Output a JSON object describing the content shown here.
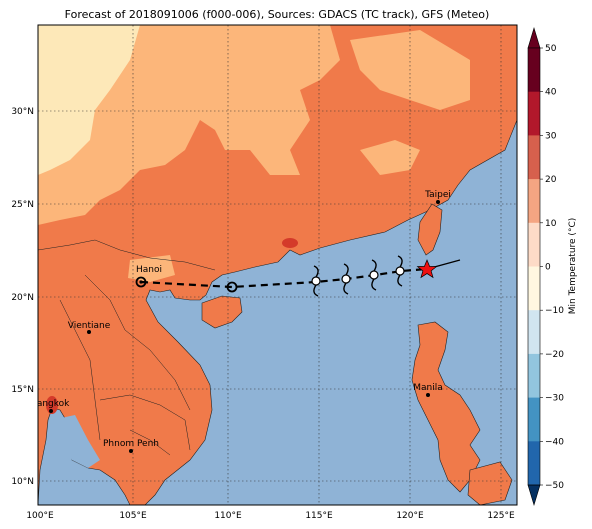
{
  "title": "Forecast of 2018091006 (f000-006), Sources: GDACS (TC track), GFS (Meteo)",
  "colors": {
    "sea": "#8fb3d6",
    "land_hot": "#f07a4a",
    "land_warm": "#fcb67a",
    "land_mild": "#fde8b8",
    "track": "#000000",
    "current_position": "#ee1111"
  },
  "axes": {
    "lon_ticks": [
      "100°E",
      "105°E",
      "110°E",
      "115°E",
      "120°E",
      "125°E"
    ],
    "lat_ticks": [
      "10°N",
      "15°N",
      "20°N",
      "25°N",
      "30°N"
    ]
  },
  "cities": [
    {
      "name": "Taipei"
    },
    {
      "name": "Hanoi"
    },
    {
      "name": "Vientiane"
    },
    {
      "name": "Manila"
    },
    {
      "name": "Bangkok"
    },
    {
      "name": "Phnom Penh"
    }
  ],
  "track": {
    "storm_symbol": "storm-glyph",
    "current_symbol": "star"
  },
  "colorbar": {
    "label": "Min Temperature (°C)",
    "ticks": [
      "50",
      "40",
      "30",
      "20",
      "10",
      "0",
      "−10",
      "−20",
      "−30",
      "−40",
      "−50"
    ],
    "colors": [
      "#67001f",
      "#b2182b",
      "#d6604d",
      "#f4a582",
      "#fddbc7",
      "#fff7e0",
      "#d1e5f0",
      "#92c5de",
      "#4393c3",
      "#2166ac",
      "#053061"
    ]
  }
}
